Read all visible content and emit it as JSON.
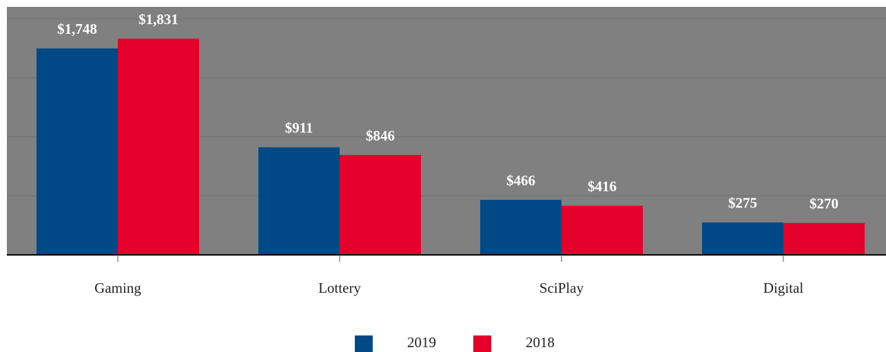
{
  "chart_data": {
    "type": "bar",
    "categories": [
      "Gaming",
      "Lottery",
      "SciPlay",
      "Digital"
    ],
    "series": [
      {
        "name": "2019",
        "color": "#004987",
        "values": [
          1748,
          911,
          466,
          275
        ],
        "value_labels": [
          "$1,748",
          "$911",
          "$466",
          "$275"
        ]
      },
      {
        "name": "2018",
        "color": "#e4002b",
        "values": [
          1831,
          846,
          416,
          270
        ],
        "value_labels": [
          "$1,831",
          "$846",
          "$416",
          "$270"
        ]
      }
    ],
    "ylim": [
      0,
      2100
    ],
    "yticks": [
      0,
      500,
      1000,
      1500,
      2000
    ],
    "grid": true,
    "legend": "bottom"
  }
}
